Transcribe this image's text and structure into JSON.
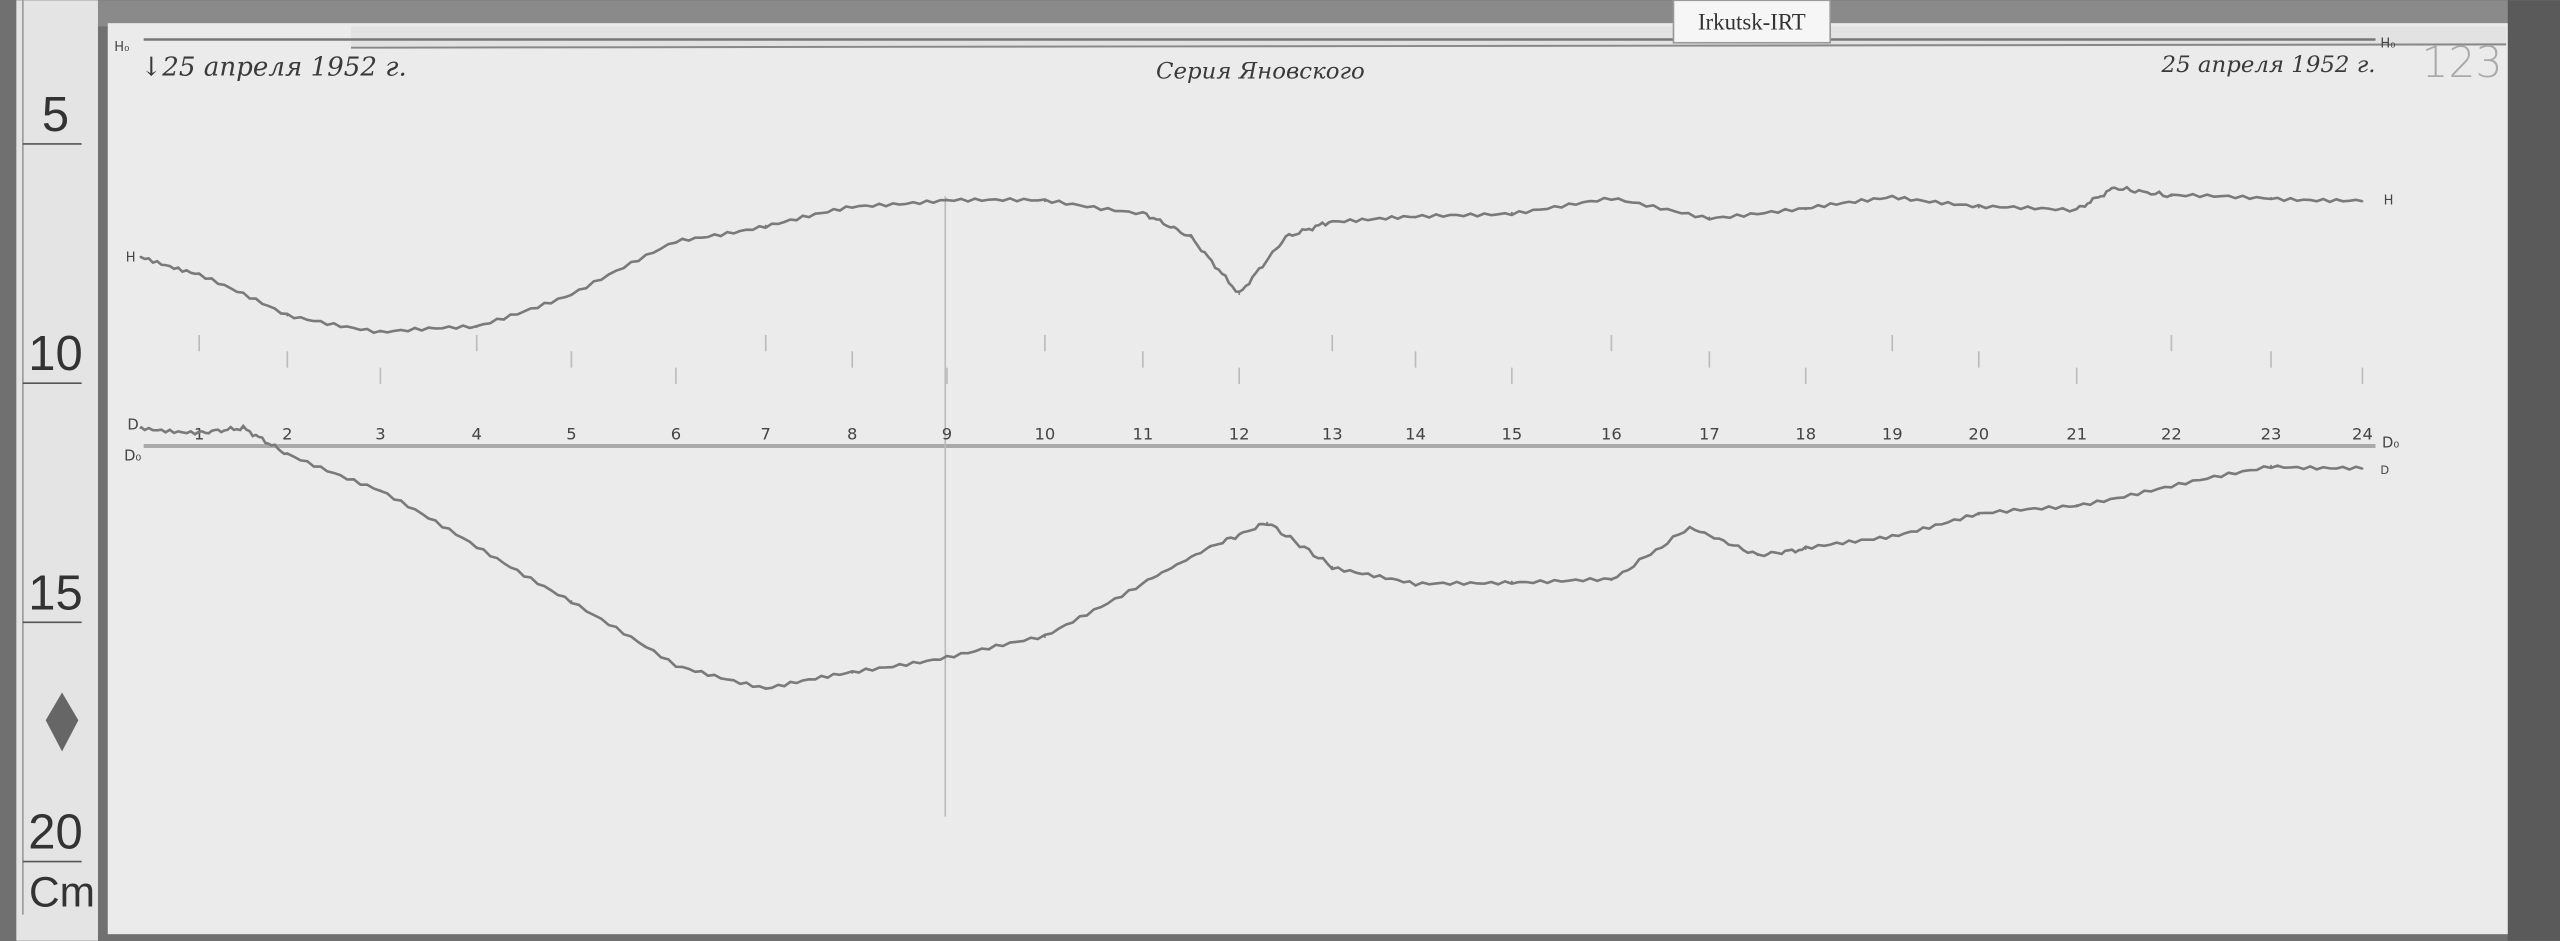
{
  "header": {
    "date_left": "↓25 апреля 1952 г.",
    "title": "Серия Яновского",
    "date_right": "25 апреля 1952 г.",
    "sheet_number": "123",
    "station_tag": "Irkutsk-IRT"
  },
  "ruler": {
    "unit": "Cm",
    "marks": [
      "5",
      "10",
      "15",
      "20"
    ]
  },
  "trace_labels": {
    "h": "H",
    "h_base": "H₀",
    "d": "D",
    "d_base": "D₀",
    "d_end": "D₀"
  },
  "colors": {
    "paper": "#ebebeb",
    "trace": "#7a7a7a",
    "frame": "#5e5e5e"
  },
  "chart_data": {
    "type": "line",
    "title": "Серия Яновского",
    "xlabel": "",
    "ylabel": "",
    "x_ticks": [
      "1",
      "2",
      "3",
      "4",
      "5",
      "6",
      "7",
      "8",
      "9",
      "10",
      "11",
      "12",
      "13",
      "14",
      "15",
      "16",
      "17",
      "18",
      "19",
      "20",
      "21",
      "22",
      "23",
      "24"
    ],
    "xlim": [
      0,
      24
    ],
    "y_scale_note_unit": "cm",
    "grid": false,
    "series": [
      {
        "name": "H",
        "x": [
          0,
          1,
          2,
          3,
          4,
          5,
          6,
          7,
          8,
          9,
          10,
          11,
          11.5,
          12,
          12.5,
          13,
          14,
          15,
          16,
          17,
          18,
          19,
          20,
          21,
          21.4,
          22,
          23,
          24
        ],
        "y": [
          8.04,
          8.41,
          9.27,
          9.61,
          9.51,
          8.82,
          7.73,
          7.39,
          7.01,
          6.84,
          6.88,
          7.12,
          7.63,
          8.82,
          7.63,
          7.29,
          7.22,
          7.12,
          6.84,
          7.22,
          7.05,
          6.77,
          7.01,
          7.05,
          6.6,
          6.77,
          6.81,
          6.88
        ]
      },
      {
        "name": "D",
        "x": [
          0,
          1,
          1.5,
          2,
          3,
          4,
          5,
          6,
          7,
          8,
          9,
          10,
          11,
          11.7,
          12.3,
          13,
          14,
          15,
          16,
          16.8,
          17.5,
          18,
          19,
          20,
          21,
          22,
          23,
          24
        ],
        "y": [
          11.62,
          11.72,
          11.62,
          12.17,
          12.92,
          14.11,
          15.24,
          16.6,
          17.05,
          16.74,
          16.4,
          15.99,
          14.86,
          14.11,
          13.6,
          14.52,
          14.9,
          14.83,
          14.8,
          13.7,
          14.28,
          14.15,
          13.87,
          13.43,
          13.23,
          12.85,
          12.41,
          12.47
        ]
      }
    ]
  }
}
